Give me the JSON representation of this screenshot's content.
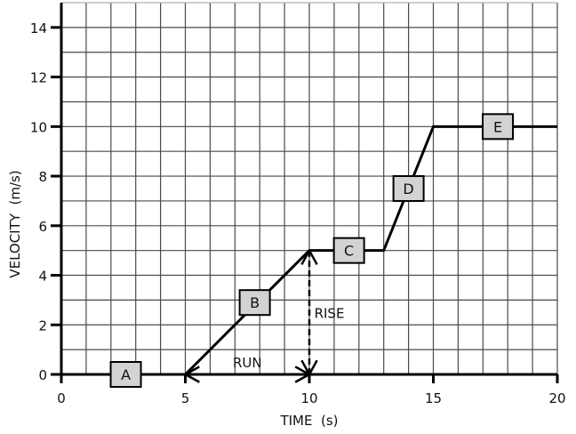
{
  "chart_data": {
    "type": "line",
    "title": "",
    "xlabel": "TIME  (s)",
    "ylabel": "VELOCITY  (m/s)",
    "xlim": [
      0,
      20
    ],
    "ylim": [
      0,
      15
    ],
    "grid": true,
    "grid_step": 1,
    "xticks": [
      0,
      5,
      10,
      15,
      20
    ],
    "yticks": [
      0,
      2,
      4,
      6,
      8,
      10,
      12,
      14
    ],
    "series": [
      {
        "name": "velocity",
        "points": [
          [
            0,
            0
          ],
          [
            5,
            0
          ],
          [
            10,
            5
          ],
          [
            13,
            5
          ],
          [
            15,
            10
          ],
          [
            20,
            10
          ]
        ]
      }
    ],
    "segment_labels": [
      {
        "label": "A",
        "x": 2.6,
        "y": 0
      },
      {
        "label": "B",
        "x": 7.8,
        "y": 2.9
      },
      {
        "label": "C",
        "x": 11.6,
        "y": 5
      },
      {
        "label": "D",
        "x": 14.0,
        "y": 7.5
      },
      {
        "label": "E",
        "x": 17.6,
        "y": 10
      }
    ],
    "annotations": [
      {
        "text": "RUN",
        "type": "double-arrow",
        "from": [
          5,
          0
        ],
        "to": [
          10,
          0
        ],
        "label_pos": [
          7.5,
          0.5
        ]
      },
      {
        "text": "RISE",
        "type": "dashed-double-arrow",
        "from": [
          10,
          0
        ],
        "to": [
          10,
          5
        ],
        "label_pos": [
          10.2,
          2.5
        ]
      }
    ]
  }
}
